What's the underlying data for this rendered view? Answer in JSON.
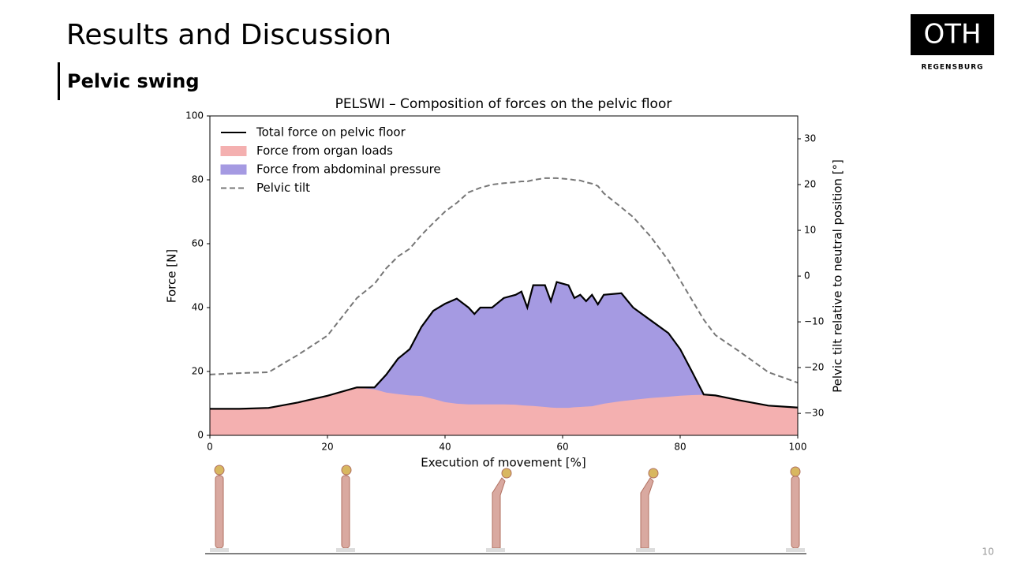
{
  "slide": {
    "title": "Results and Discussion",
    "subtitle": "Pelvic swing",
    "logo": "OTH",
    "logo_sub": "REGENSBURG",
    "page": "10"
  },
  "chart_data": {
    "type": "area",
    "title": "PELSWI – Composition of forces on the pelvic floor",
    "x_label": "Execution of movement [%]",
    "y_label": "Force [N]",
    "y2_label": "Pelvic tilt relative to neutral position [°]",
    "x": [
      0,
      5,
      10,
      15,
      20,
      25,
      28,
      30,
      32,
      34,
      36,
      38,
      40,
      42,
      44,
      45,
      46,
      48,
      50,
      52,
      53,
      54,
      55,
      57,
      58,
      59,
      61,
      62,
      63,
      64,
      65,
      66,
      67,
      70,
      72,
      75,
      78,
      80,
      82,
      84,
      86,
      90,
      95,
      100
    ],
    "series": [
      {
        "name": "Total force on pelvic floor",
        "color": "#000000",
        "kind": "line",
        "values": [
          8.3,
          8.3,
          8.6,
          10.3,
          12.4,
          15,
          15,
          19,
          24,
          27,
          34,
          39,
          41.2,
          42.8,
          40,
          38,
          40,
          40,
          43,
          44,
          45,
          40,
          47,
          47,
          42,
          48,
          47,
          43,
          44,
          42,
          44,
          41,
          44,
          44.5,
          40,
          36,
          32,
          27,
          20,
          12.8,
          12.5,
          11,
          9.3,
          8.7
        ]
      },
      {
        "name": "Force from organ loads",
        "color": "#f4b0b0",
        "kind": "area",
        "values": [
          8.3,
          8.3,
          8.6,
          10.3,
          12.4,
          15,
          14.5,
          13.5,
          13,
          12.6,
          12.4,
          11.5,
          10.5,
          10,
          9.8,
          9.8,
          9.8,
          9.8,
          9.8,
          9.7,
          9.5,
          9.4,
          9.3,
          9,
          8.8,
          8.7,
          8.7,
          8.9,
          9,
          9.1,
          9.2,
          9.6,
          10,
          10.8,
          11.2,
          11.8,
          12.2,
          12.5,
          12.7,
          12.8,
          12.5,
          11,
          9.3,
          8.7
        ]
      },
      {
        "name": "Force from abdominal pressure",
        "color": "#a59ae2",
        "kind": "area",
        "values": [
          0,
          0,
          0,
          0,
          0,
          0,
          0.5,
          5.5,
          11,
          14.4,
          21.6,
          27.5,
          30.7,
          32.8,
          30.2,
          28.2,
          30.2,
          30.2,
          33.2,
          34.3,
          35.5,
          30.6,
          37.7,
          38,
          33.2,
          39.3,
          38.3,
          34.1,
          35,
          32.9,
          34.8,
          31.4,
          34,
          33.7,
          28.8,
          24.2,
          19.8,
          14.5,
          7.3,
          0,
          0,
          0,
          0,
          0
        ]
      },
      {
        "name": "Pelvic tilt",
        "color": "#777777",
        "kind": "line",
        "dashed": true,
        "axis": "y2",
        "values": [
          -21.5,
          -21.2,
          -21,
          -17.2,
          -13,
          -4.8,
          -1.7,
          1.7,
          4.3,
          6,
          9,
          11.6,
          14.1,
          16,
          18.3,
          18.8,
          19.3,
          20,
          20.3,
          20.5,
          20.7,
          20.7,
          21,
          21.4,
          21.4,
          21.4,
          21.2,
          21,
          20.9,
          20.5,
          20.2,
          19.7,
          18.1,
          15,
          12.9,
          8.6,
          3.4,
          -0.9,
          -5.2,
          -9.5,
          -12.9,
          -16.4,
          -21,
          -23.3
        ]
      }
    ],
    "xlim": [
      0,
      100
    ],
    "xticks": [
      0,
      20,
      40,
      60,
      80,
      100
    ],
    "ylim": [
      0,
      100
    ],
    "yticks": [
      0,
      20,
      40,
      60,
      80,
      100
    ],
    "y2lim": [
      -34.8,
      35
    ],
    "y2ticks": [
      {
        "value": -30,
        "label": "−30"
      },
      {
        "value": -20,
        "label": "−20"
      },
      {
        "value": -10,
        "label": "−10"
      },
      0,
      10,
      20,
      30
    ],
    "legend": "upper left"
  }
}
